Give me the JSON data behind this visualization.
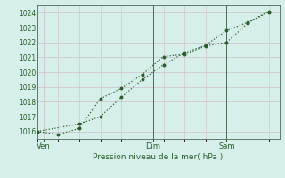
{
  "line1_x": [
    0,
    1,
    2,
    3,
    4,
    5,
    6,
    7,
    8,
    9,
    10,
    11
  ],
  "line1_y": [
    1016.0,
    1015.8,
    1016.2,
    1018.2,
    1018.9,
    1019.85,
    1021.05,
    1021.2,
    1021.75,
    1022.0,
    1023.3,
    1024.05
  ],
  "line2_x": [
    0,
    2,
    3,
    4,
    5,
    6,
    7,
    8,
    9,
    10,
    11
  ],
  "line2_y": [
    1016.0,
    1016.5,
    1017.0,
    1018.3,
    1019.5,
    1020.5,
    1021.3,
    1021.8,
    1022.8,
    1023.35,
    1024.1
  ],
  "line_color": "#2a5e2a",
  "bg_color": "#d6efeb",
  "grid_color_major": "#b8c8d0",
  "grid_color_minor": "#d0bcc8",
  "tick_label_color": "#2a5e2a",
  "axis_label_color": "#2a5e2a",
  "xlabel": "Pression niveau de la mer( hPa )",
  "ylim": [
    1015.5,
    1024.5
  ],
  "yticks": [
    1016,
    1017,
    1018,
    1019,
    1020,
    1021,
    1022,
    1023,
    1024
  ],
  "xlim": [
    0,
    11.5
  ],
  "xtick_positions": [
    0.3,
    5.5,
    9.0
  ],
  "xtick_labels": [
    "Ven",
    "Dim",
    "Sam"
  ],
  "vline_positions": [
    5.5,
    9.0
  ],
  "vline_color": "#4a6a5a"
}
